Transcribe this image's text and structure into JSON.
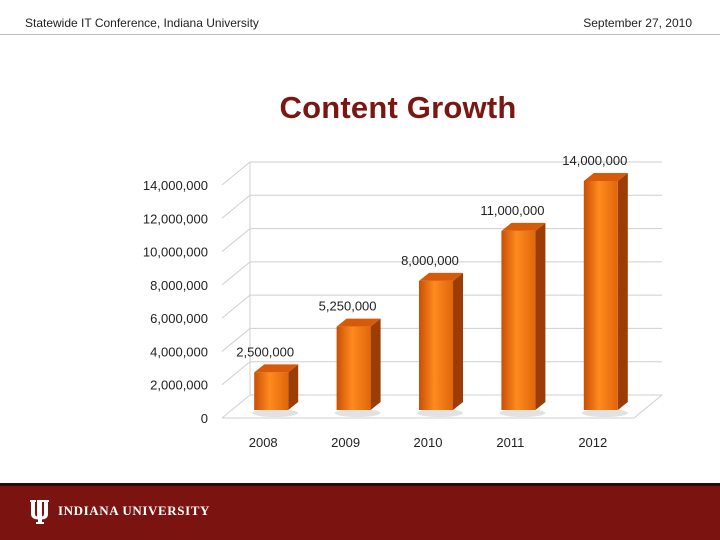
{
  "header": {
    "left": "Statewide IT Conference, Indiana University",
    "right": "September 27, 2010"
  },
  "footer": {
    "brand": "INDIANA UNIVERSITY",
    "logo_icon": "iu-trident-icon"
  },
  "colors": {
    "bar": "#f57f13",
    "title": "#7a1712",
    "footer": "#7b1410"
  },
  "chart_data": {
    "type": "bar",
    "title": "Content Growth",
    "xlabel": "",
    "ylabel": "",
    "categories": [
      "2008",
      "2009",
      "2010",
      "2011",
      "2012"
    ],
    "values": [
      2500000,
      5250000,
      8000000,
      11000000,
      14000000
    ],
    "data_labels": [
      "2,500,000",
      "5,250,000",
      "8,000,000",
      "11,000,000",
      "14,000,000"
    ],
    "ylim": [
      0,
      14000000
    ],
    "yticks": [
      0,
      2000000,
      4000000,
      6000000,
      8000000,
      10000000,
      12000000,
      14000000
    ],
    "ytick_labels": [
      "0",
      "2,000,000",
      "4,000,000",
      "6,000,000",
      "8,000,000",
      "10,000,000",
      "12,000,000",
      "14,000,000"
    ],
    "grid": true,
    "legend": "none",
    "style": "3d"
  }
}
